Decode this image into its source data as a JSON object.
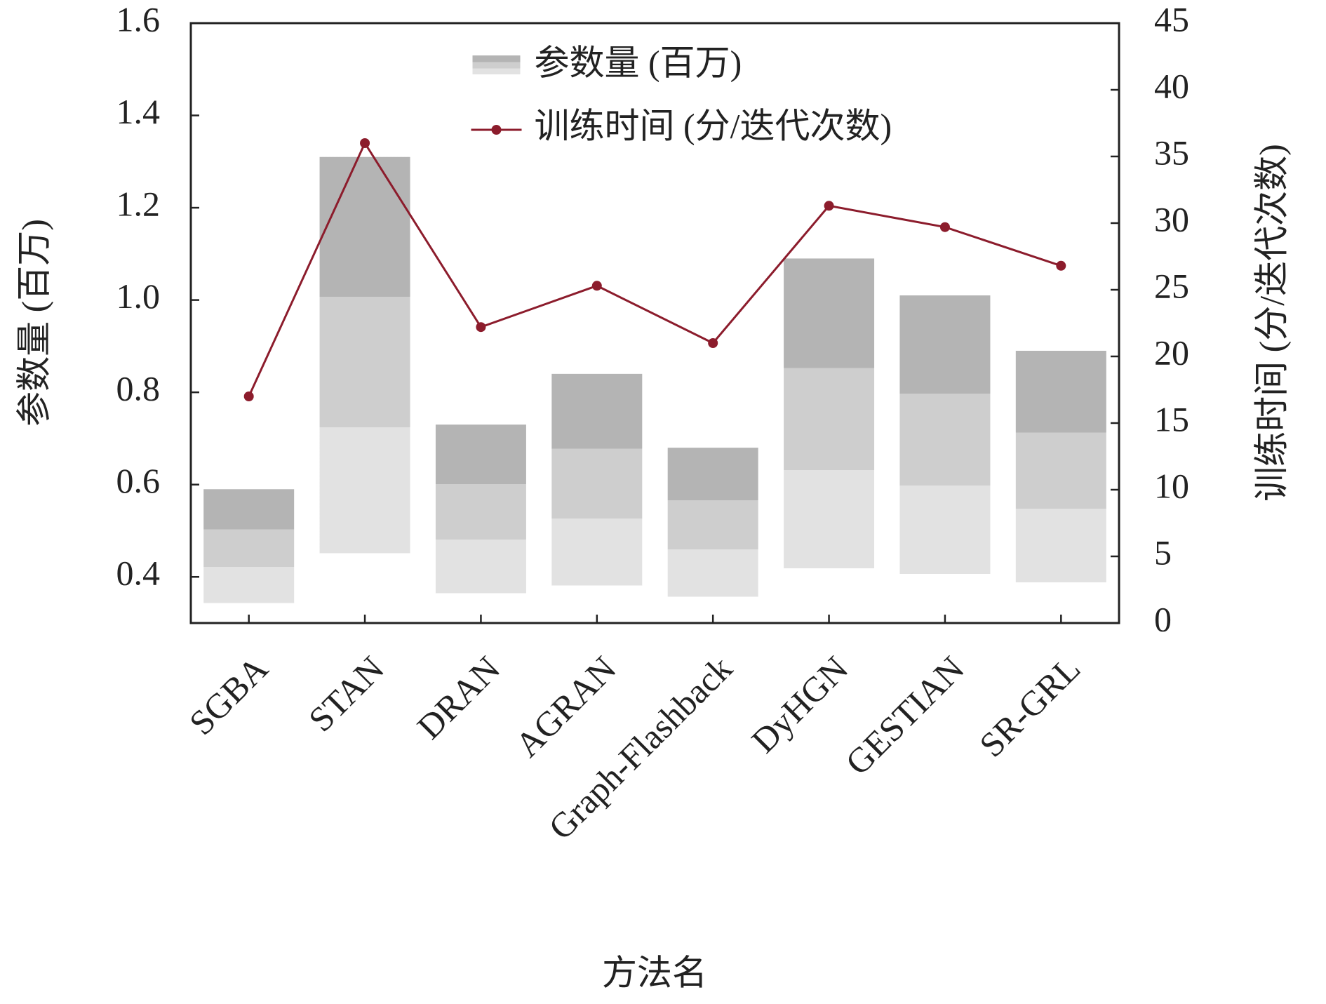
{
  "chart_data": {
    "type": "bar",
    "categories": [
      "SGBA",
      "STAN",
      "DRAN",
      "AGRAN",
      "Graph-Flashback",
      "DyHGN",
      "GESTIAN",
      "SR-GRL"
    ],
    "series": [
      {
        "name": "参数量 (百万)",
        "type": "bar",
        "color": "#b4b4b4",
        "axis": "y",
        "values": [
          0.59,
          1.31,
          0.73,
          0.84,
          0.68,
          1.09,
          1.01,
          0.89
        ]
      },
      {
        "name": "训练时间 (分/迭代次数)",
        "type": "line",
        "color": "#8c1c2c",
        "axis": "y2",
        "values": [
          17,
          36,
          22.2,
          25.3,
          21,
          31.3,
          29.7,
          26.8
        ]
      }
    ],
    "xlabel": "方法名",
    "ylabel": "参数量 (百万)",
    "y2label": "训练时间 (分/迭代次数)",
    "ylim": [
      0.3,
      1.6
    ],
    "yticks": [
      0.4,
      0.6,
      0.8,
      {
        "value": 1,
        "label": "1.0"
      },
      1.2,
      1.4,
      1.6
    ],
    "y2lim": [
      0,
      45
    ],
    "y2ticks": [
      0,
      5,
      10,
      15,
      20,
      25,
      30,
      35,
      40,
      45
    ],
    "legend": "upper center"
  }
}
